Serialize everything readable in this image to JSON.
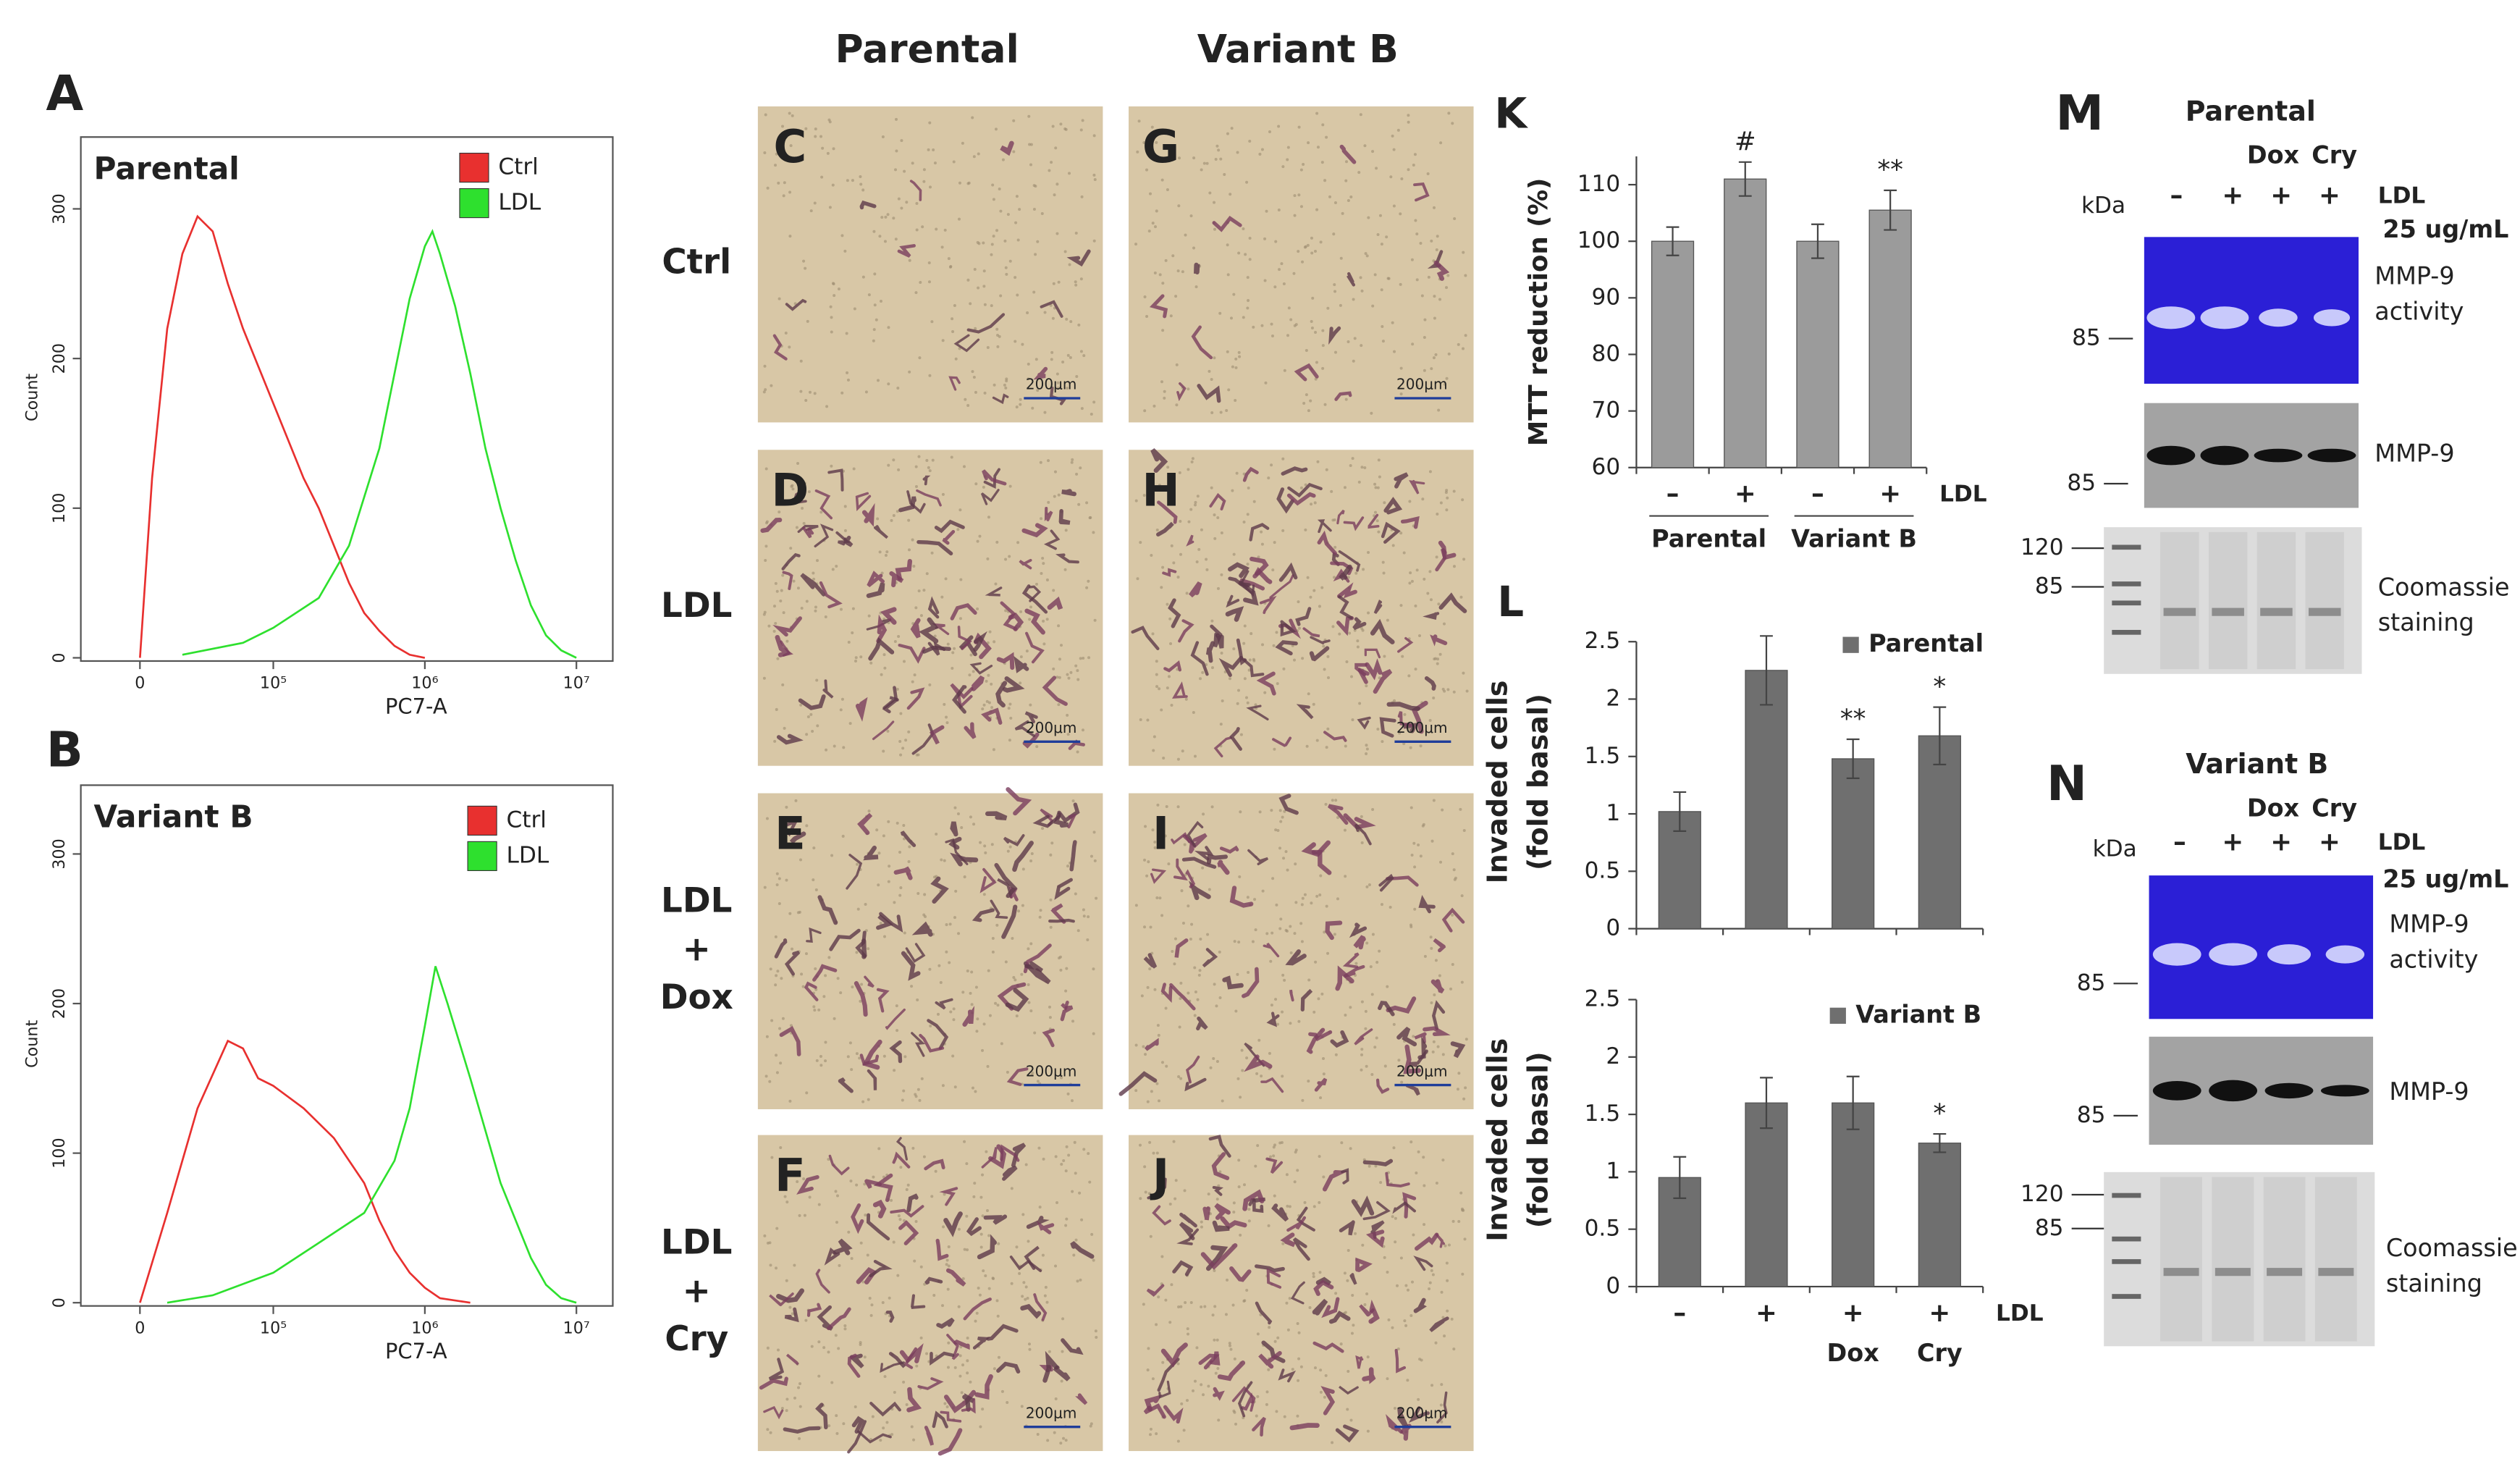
{
  "chart_data": [
    {
      "type": "line",
      "panel": "A",
      "title": "Parental",
      "x_label": "PC7-A",
      "y_label": "Count",
      "xlim": [
        3.73,
        7.24
      ],
      "xticks": [
        {
          "value": 4.12,
          "label": "0"
        },
        {
          "value": 5,
          "label": "10⁵"
        },
        {
          "value": 6,
          "label": "10⁶"
        },
        {
          "value": 7,
          "label": "10⁷"
        }
      ],
      "ylim": [
        0,
        348
      ],
      "yticks": [
        0,
        100,
        200,
        300
      ],
      "legend": "upper right",
      "series": [
        {
          "name": "Ctrl",
          "color": "#e8302f",
          "x": [
            4.12,
            4.2,
            4.3,
            4.4,
            4.5,
            4.6,
            4.7,
            4.8,
            4.9,
            5.0,
            5.1,
            5.2,
            5.3,
            5.4,
            5.5,
            5.6,
            5.7,
            5.8,
            5.9,
            6.0
          ],
          "values": [
            0,
            120,
            220,
            270,
            295,
            285,
            250,
            220,
            195,
            170,
            145,
            120,
            100,
            75,
            50,
            30,
            18,
            8,
            2,
            0
          ]
        },
        {
          "name": "LDL",
          "color": "#2ee02e",
          "x": [
            4.4,
            4.8,
            5.0,
            5.3,
            5.5,
            5.7,
            5.8,
            5.9,
            6.0,
            6.05,
            6.1,
            6.2,
            6.3,
            6.4,
            6.5,
            6.6,
            6.7,
            6.8,
            6.9,
            7.0
          ],
          "values": [
            2,
            10,
            20,
            40,
            75,
            140,
            190,
            240,
            275,
            285,
            270,
            235,
            190,
            140,
            100,
            65,
            35,
            15,
            5,
            0
          ]
        }
      ]
    },
    {
      "type": "line",
      "panel": "B",
      "title": "Variant B",
      "x_label": "PC7-A",
      "y_label": "Count",
      "xlim": [
        3.73,
        7.24
      ],
      "xticks": [
        {
          "value": 4.12,
          "label": "0"
        },
        {
          "value": 5,
          "label": "10⁵"
        },
        {
          "value": 6,
          "label": "10⁶"
        },
        {
          "value": 7,
          "label": "10⁷"
        }
      ],
      "ylim": [
        0,
        346
      ],
      "yticks": [
        0,
        100,
        200,
        300
      ],
      "legend": "upper right",
      "series": [
        {
          "name": "Ctrl",
          "color": "#e8302f",
          "x": [
            4.12,
            4.3,
            4.5,
            4.7,
            4.8,
            4.9,
            5.0,
            5.2,
            5.4,
            5.6,
            5.7,
            5.8,
            5.9,
            6.0,
            6.1,
            6.3
          ],
          "values": [
            0,
            60,
            130,
            175,
            170,
            150,
            145,
            130,
            110,
            80,
            55,
            35,
            20,
            10,
            3,
            0
          ]
        },
        {
          "name": "LDL",
          "color": "#2ee02e",
          "x": [
            4.3,
            4.6,
            5.0,
            5.3,
            5.6,
            5.8,
            5.9,
            6.0,
            6.07,
            6.15,
            6.3,
            6.5,
            6.7,
            6.8,
            6.9,
            7.0
          ],
          "values": [
            0,
            5,
            20,
            40,
            60,
            95,
            130,
            185,
            225,
            200,
            150,
            80,
            30,
            12,
            3,
            0
          ]
        }
      ]
    },
    {
      "type": "bar",
      "panel": "K",
      "y_label": "MTT reduction (%)",
      "categories": [
        "–",
        "+",
        "–",
        "+"
      ],
      "x_label": "LDL",
      "groups": [
        "Parental",
        "Variant B"
      ],
      "values": [
        100,
        111,
        100,
        105.5
      ],
      "errors": [
        2.5,
        3,
        3,
        3.5
      ],
      "color": "#9b9b9b",
      "annotations": [
        null,
        "#",
        null,
        "**"
      ],
      "ylim": [
        60,
        115
      ],
      "yticks": [
        60,
        70,
        80,
        90,
        100,
        110
      ]
    },
    {
      "type": "bar",
      "panel": "L",
      "y_label": [
        "Invaded cells",
        "(fold basal)"
      ],
      "categories": [
        null,
        null,
        null,
        null
      ],
      "series": [
        {
          "name": "Parental",
          "color": "#6f6f6f",
          "values": [
            1.02,
            2.25,
            1.48,
            1.68
          ],
          "errors": [
            0.17,
            0.3,
            0.17,
            0.25
          ]
        }
      ],
      "annotations": [
        null,
        null,
        "**",
        "*"
      ],
      "ylim": [
        0,
        2.5
      ],
      "yticks": [
        0,
        0.5,
        1,
        1.5,
        2,
        2.5
      ]
    },
    {
      "type": "bar",
      "y_label": [
        "Invaded cells",
        "(fold basal)"
      ],
      "categories": [
        "–",
        "+",
        "+",
        "+"
      ],
      "subcategories": [
        null,
        null,
        "Dox",
        "Cry"
      ],
      "x_label": "LDL",
      "series": [
        {
          "name": "Variant B",
          "color": "#6f6f6f",
          "values": [
            0.95,
            1.6,
            1.6,
            1.25
          ],
          "errors": [
            0.18,
            0.22,
            0.23,
            0.08
          ]
        }
      ],
      "annotations": [
        null,
        null,
        null,
        "*"
      ],
      "ylim": [
        0,
        2.5
      ],
      "yticks": [
        0,
        0.5,
        1,
        1.5,
        2,
        2.5
      ]
    }
  ],
  "micrographs": {
    "column_headers": [
      "Parental",
      "Variant B"
    ],
    "row_labels": [
      [
        "Ctrl"
      ],
      [
        "LDL"
      ],
      [
        "LDL",
        "+",
        "Dox"
      ],
      [
        "LDL",
        "+",
        "Cry"
      ]
    ],
    "panels": [
      [
        "C",
        "D",
        "E",
        "F"
      ],
      [
        "G",
        "H",
        "I",
        "J"
      ]
    ],
    "scale_bar": "200μm"
  },
  "blots": [
    {
      "panel": "M",
      "title": "Parental",
      "treatments": [
        "Dox",
        "Cry"
      ],
      "kda": "kDa",
      "lanes": [
        "–",
        "+",
        "+",
        "+"
      ],
      "ldl": "LDL",
      "dose": "25 ug/mL",
      "activity": [
        "MMP-9",
        "activity"
      ],
      "activity_marker": "85",
      "western": "MMP-9",
      "western_marker": "85",
      "coomassie_markers": [
        "120",
        "85"
      ],
      "coomassie": [
        "Coomassie",
        "staining"
      ]
    },
    {
      "panel": "N",
      "title": "Variant B",
      "treatments": [
        "Dox",
        "Cry"
      ],
      "kda": "kDa",
      "lanes": [
        "–",
        "+",
        "+",
        "+"
      ],
      "ldl": "LDL",
      "dose": "25 ug/mL",
      "activity": [
        "MMP-9",
        "activity"
      ],
      "activity_marker": "85",
      "western": "MMP-9",
      "western_marker": "85",
      "coomassie_markers": [
        "120",
        "85"
      ],
      "coomassie": [
        "Coomassie",
        "staining"
      ]
    }
  ]
}
